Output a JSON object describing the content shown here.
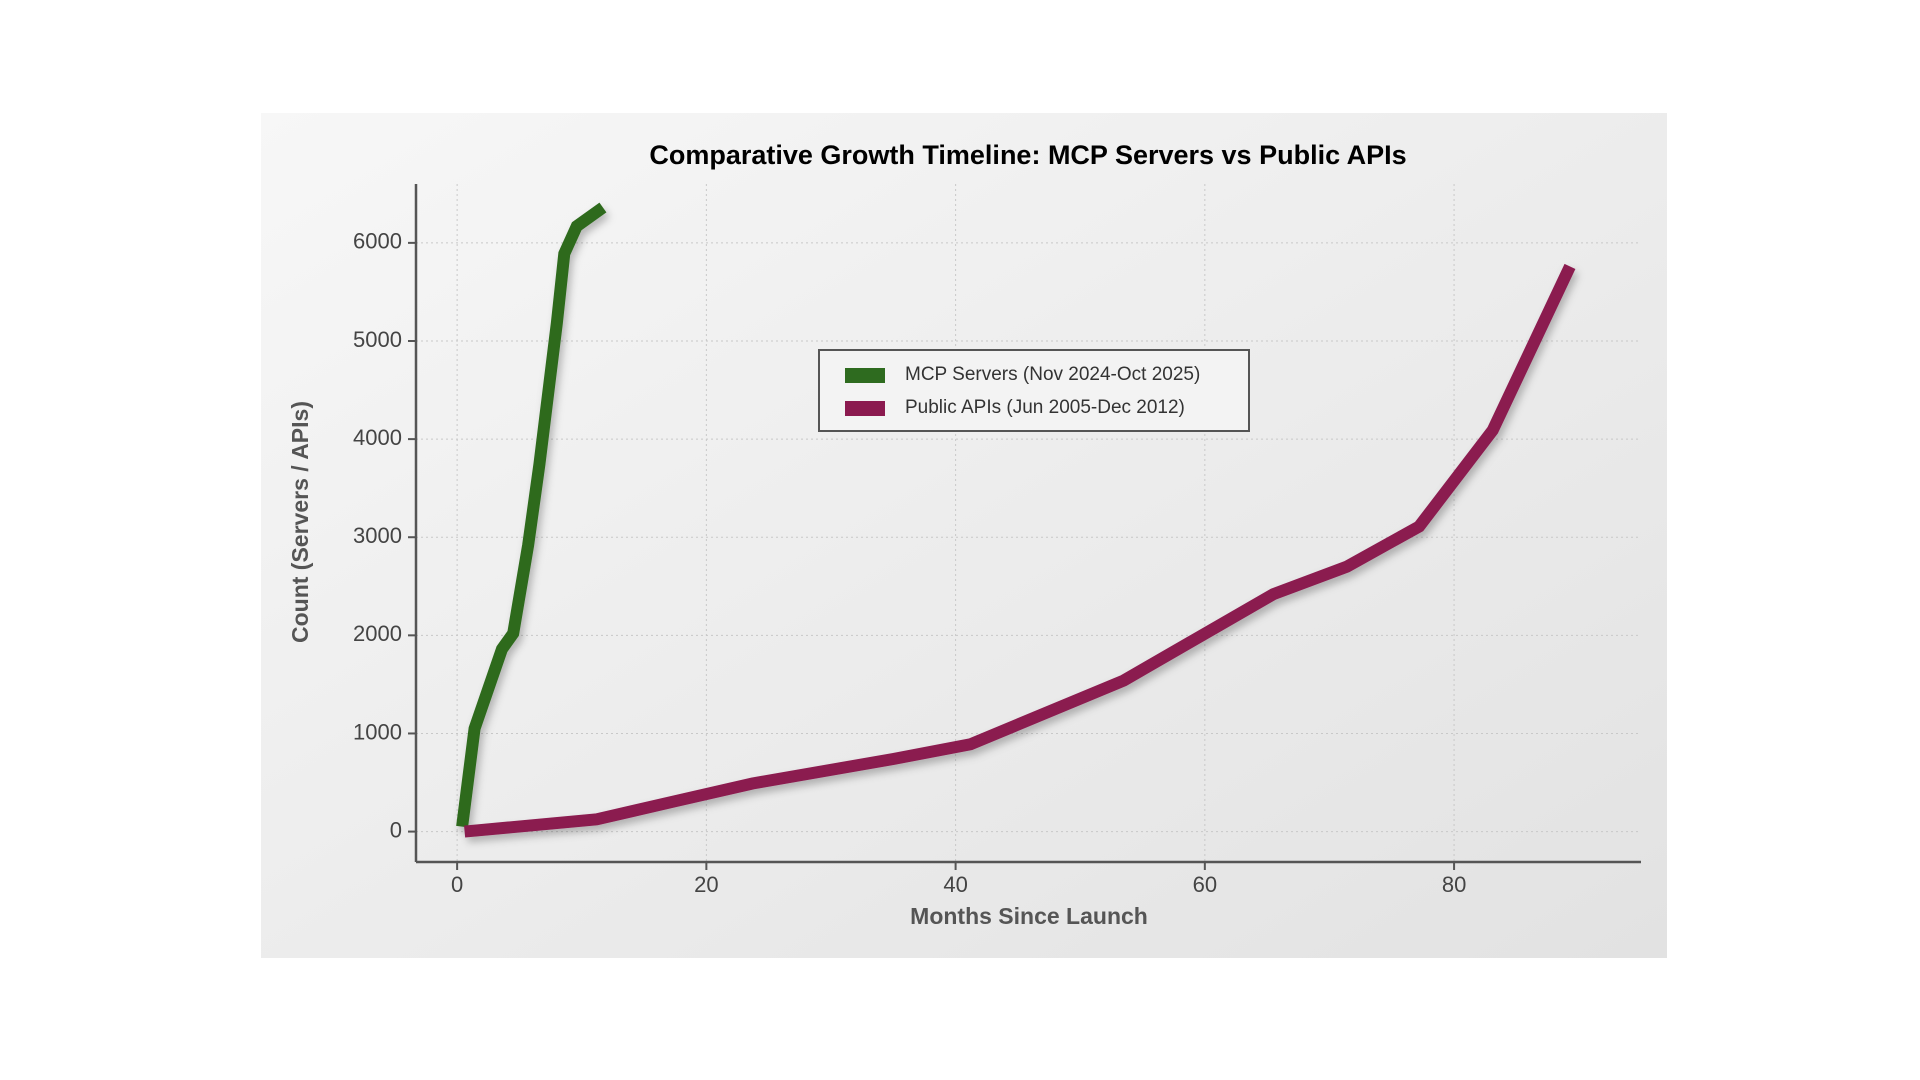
{
  "chart_data": {
    "type": "line",
    "title": "Comparative Growth Timeline: MCP Servers vs Public APIs",
    "x_label": "Months Since Launch",
    "y_label": "Count (Servers / APIs)",
    "series": [
      {
        "name": "MCP Servers (Nov 2024-Oct 2025)",
        "color": "#2e6b1f",
        "x": [
          0.4,
          1.4,
          3.6,
          4.5,
          5.7,
          6.6,
          8,
          8.6,
          9.6,
          11.7
        ],
        "values": [
          50,
          1050,
          1860,
          2020,
          2920,
          3740,
          5180,
          5890,
          6170,
          6360
        ]
      },
      {
        "name": "Public APIs (Jun 2005-Dec 2012)",
        "color": "#8b1a4f",
        "x": [
          0.6,
          11.2,
          17.5,
          23.7,
          35,
          41.2,
          53.5,
          65.5,
          71.4,
          77.2,
          83.1,
          89.3
        ],
        "values": [
          0,
          125,
          310,
          490,
          740,
          890,
          1540,
          2420,
          2700,
          3110,
          4090,
          5760
        ]
      }
    ],
    "xlim": [
      -3.3,
      95
    ],
    "ylim": [
      -310,
      6600
    ],
    "xticks": [
      0,
      20,
      40,
      60,
      80
    ],
    "yticks": [
      0,
      1000,
      2000,
      3000,
      4000,
      5000,
      6000
    ],
    "grid": true,
    "legend": "upper center"
  }
}
